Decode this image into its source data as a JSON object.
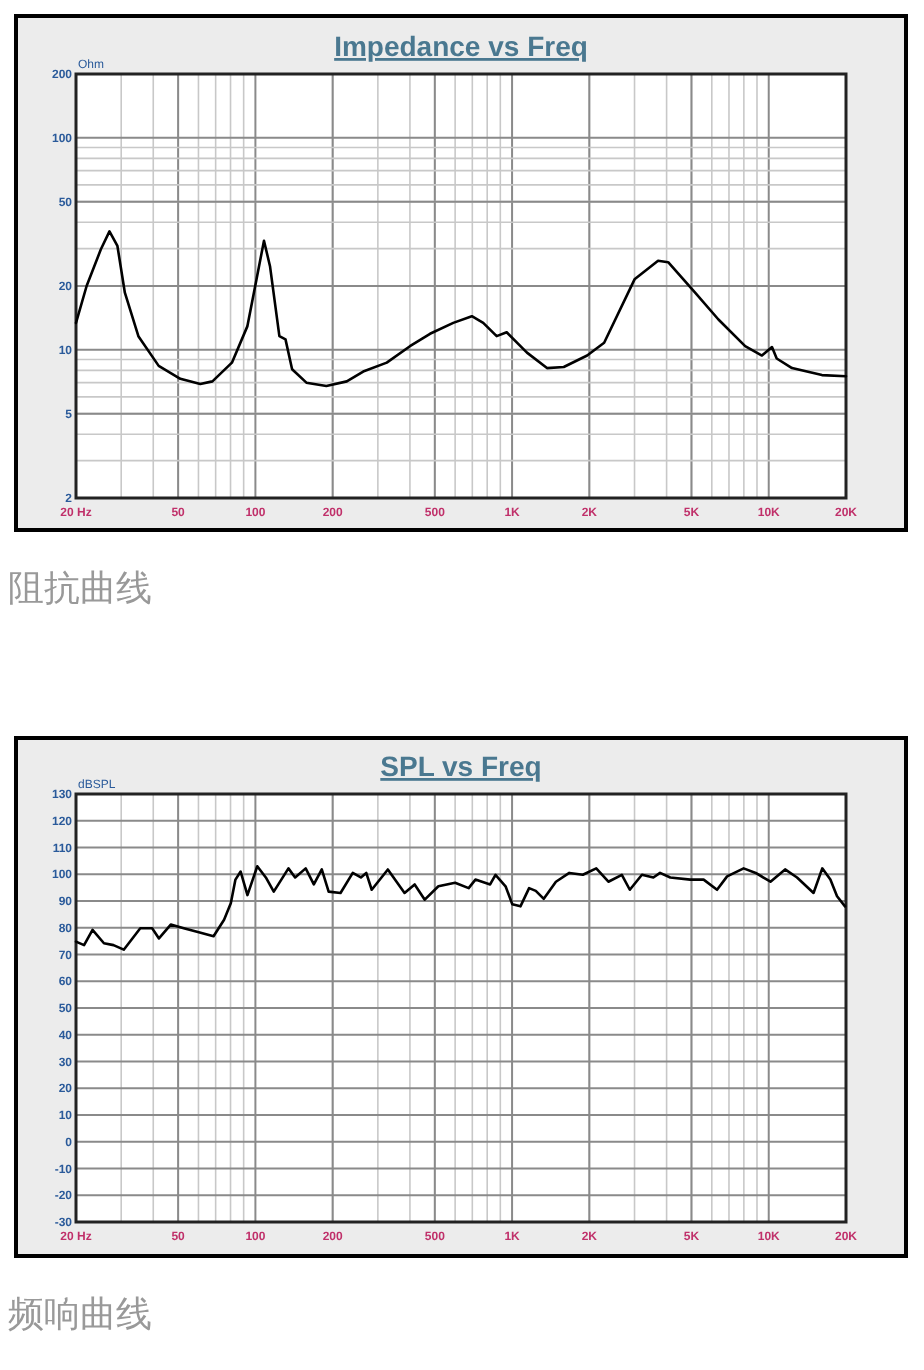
{
  "chart_data": [
    {
      "type": "line",
      "title": "Impedance vs Freq",
      "ylabel": "Ohm",
      "log": "xy",
      "grid": true,
      "color": "#000000",
      "xlim": [
        20,
        20000
      ],
      "ylim": [
        2,
        200
      ],
      "xticks": [
        {
          "value": 20,
          "label": "20 Hz"
        },
        50,
        100,
        200,
        500,
        {
          "value": 1000,
          "label": "1K"
        },
        {
          "value": 2000,
          "label": "2K"
        },
        {
          "value": 5000,
          "label": "5K"
        },
        {
          "value": 10000,
          "label": "10K"
        },
        {
          "value": 20000,
          "label": "20K"
        }
      ],
      "yticks": [
        2,
        5,
        10,
        20,
        50,
        100,
        200
      ],
      "x": [
        20,
        22,
        25,
        27,
        29,
        31,
        35,
        42,
        51,
        61,
        68,
        81,
        93,
        101,
        108,
        114,
        124,
        131,
        139,
        158,
        189,
        227,
        263,
        325,
        400,
        479,
        590,
        697,
        772,
        871,
        953,
        1143,
        1368,
        1590,
        1961,
        2284,
        3001,
        3706,
        4056,
        5166,
        6369,
        8093,
        9409,
        10295,
        10740,
        12320,
        16120,
        20000
      ],
      "values": [
        13.4,
        20,
        29.8,
        36.2,
        30.9,
        18.6,
        11.6,
        8.4,
        7.3,
        6.9,
        7.1,
        8.7,
        12.9,
        21.5,
        32.7,
        24.8,
        11.6,
        11.2,
        8.1,
        7.0,
        6.75,
        7.1,
        7.9,
        8.7,
        10.4,
        11.9,
        13.4,
        14.4,
        13.4,
        11.6,
        12.1,
        9.7,
        8.2,
        8.3,
        9.4,
        10.8,
        21.5,
        26.3,
        25.9,
        18.6,
        13.9,
        10.4,
        9.4,
        10.3,
        9.1,
        8.2,
        7.6,
        7.5
      ],
      "annotations": [
        "阻抗曲线"
      ]
    },
    {
      "type": "line",
      "title": "SPL vs Freq",
      "ylabel": "dBSPL",
      "log": "x",
      "grid": true,
      "color": "#000000",
      "xlim": [
        20,
        20000
      ],
      "ylim": [
        -30,
        130
      ],
      "xticks": [
        {
          "value": 20,
          "label": "20 Hz"
        },
        50,
        100,
        200,
        500,
        {
          "value": 1000,
          "label": "1K"
        },
        {
          "value": 2000,
          "label": "2K"
        },
        {
          "value": 5000,
          "label": "5K"
        },
        {
          "value": 10000,
          "label": "10K"
        },
        {
          "value": 20000,
          "label": "20K"
        }
      ],
      "yticks": [
        -30,
        -20,
        -10,
        0,
        10,
        20,
        30,
        40,
        50,
        60,
        70,
        80,
        90,
        100,
        110,
        120,
        130
      ],
      "x": [
        20,
        21.5,
        23.2,
        25.7,
        28,
        30.7,
        35.6,
        39.6,
        42.1,
        46.8,
        52.6,
        59.2,
        68.7,
        75.5,
        80.2,
        83.6,
        87.6,
        93.1,
        101.7,
        109.8,
        117.9,
        134.5,
        142.8,
        157,
        168.9,
        181.4,
        192.9,
        214.6,
        239.5,
        257.6,
        270.3,
        283.9,
        328.1,
        381.2,
        417.3,
        456.9,
        516.3,
        599.9,
        677.5,
        719.8,
        821.2,
        861.9,
        943.2,
        1002,
        1078,
        1165,
        1237,
        1329,
        1482,
        1671,
        1887,
        2128,
        2373,
        2677,
        2876,
        3206,
        3552,
        3772,
        4134,
        4946,
        5576,
        6289,
        6883,
        7984,
        8897,
        10158,
        11581,
        12891,
        14947,
        16163,
        17386,
        18458,
        19821
      ],
      "values": [
        74.8,
        73.5,
        79.2,
        74.2,
        73.5,
        71.8,
        79.8,
        79.8,
        76,
        81.2,
        79.8,
        78.5,
        76.8,
        83,
        89.2,
        98,
        101,
        92.2,
        103,
        98.8,
        93.5,
        102.2,
        98.8,
        102.2,
        96.2,
        101.8,
        93.5,
        93,
        100.5,
        98.8,
        100.5,
        94.2,
        101.8,
        93,
        96.2,
        90.5,
        95.5,
        96.8,
        94.8,
        98,
        96.2,
        99.8,
        95.5,
        88.8,
        88,
        94.8,
        93.8,
        90.8,
        97.2,
        100.5,
        99.8,
        102.2,
        97.2,
        99.8,
        94.2,
        99.8,
        98.8,
        100.5,
        98.8,
        98,
        98,
        94.2,
        99.2,
        102.2,
        100.5,
        97.2,
        101.8,
        98.8,
        93,
        102.2,
        98,
        91.8,
        88
      ],
      "annotations": [
        "频响曲线"
      ]
    }
  ]
}
